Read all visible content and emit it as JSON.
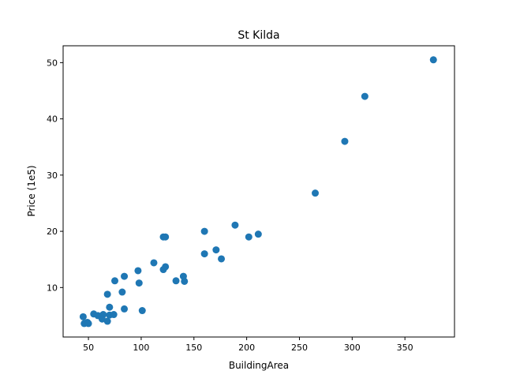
{
  "chart_data": {
    "type": "scatter",
    "title": "St Kilda",
    "xlabel": "BuildingArea",
    "ylabel": "Price (1e5)",
    "xlim": [
      26,
      397
    ],
    "ylim": [
      1.2,
      53.0
    ],
    "xticks": [
      50,
      100,
      150,
      200,
      250,
      300,
      350
    ],
    "yticks": [
      10,
      20,
      30,
      40,
      50
    ],
    "grid": false,
    "marker_color": "#1f77b4",
    "points": [
      {
        "x": 377,
        "y": 50.5
      },
      {
        "x": 312,
        "y": 44.0
      },
      {
        "x": 293,
        "y": 36.0
      },
      {
        "x": 265,
        "y": 26.8
      },
      {
        "x": 189,
        "y": 21.1
      },
      {
        "x": 211,
        "y": 19.5
      },
      {
        "x": 202,
        "y": 19.0
      },
      {
        "x": 160,
        "y": 20.0
      },
      {
        "x": 121,
        "y": 19.0
      },
      {
        "x": 123,
        "y": 19.0
      },
      {
        "x": 160,
        "y": 16.0
      },
      {
        "x": 171,
        "y": 16.7
      },
      {
        "x": 176,
        "y": 15.1
      },
      {
        "x": 112,
        "y": 14.4
      },
      {
        "x": 123,
        "y": 13.7
      },
      {
        "x": 121,
        "y": 13.2
      },
      {
        "x": 97,
        "y": 13.0
      },
      {
        "x": 140,
        "y": 12.0
      },
      {
        "x": 141,
        "y": 11.1
      },
      {
        "x": 133,
        "y": 11.2
      },
      {
        "x": 84,
        "y": 12.0
      },
      {
        "x": 75,
        "y": 11.2
      },
      {
        "x": 98,
        "y": 10.8
      },
      {
        "x": 82,
        "y": 9.2
      },
      {
        "x": 68,
        "y": 8.8
      },
      {
        "x": 70,
        "y": 6.5
      },
      {
        "x": 84,
        "y": 6.2
      },
      {
        "x": 101,
        "y": 5.9
      },
      {
        "x": 55,
        "y": 5.3
      },
      {
        "x": 59,
        "y": 5.0
      },
      {
        "x": 64,
        "y": 5.2
      },
      {
        "x": 70,
        "y": 5.1
      },
      {
        "x": 74,
        "y": 5.2
      },
      {
        "x": 63,
        "y": 4.4
      },
      {
        "x": 68,
        "y": 4.0
      },
      {
        "x": 45,
        "y": 4.8
      },
      {
        "x": 46,
        "y": 3.6
      },
      {
        "x": 49,
        "y": 3.8
      },
      {
        "x": 50,
        "y": 3.6
      }
    ]
  }
}
